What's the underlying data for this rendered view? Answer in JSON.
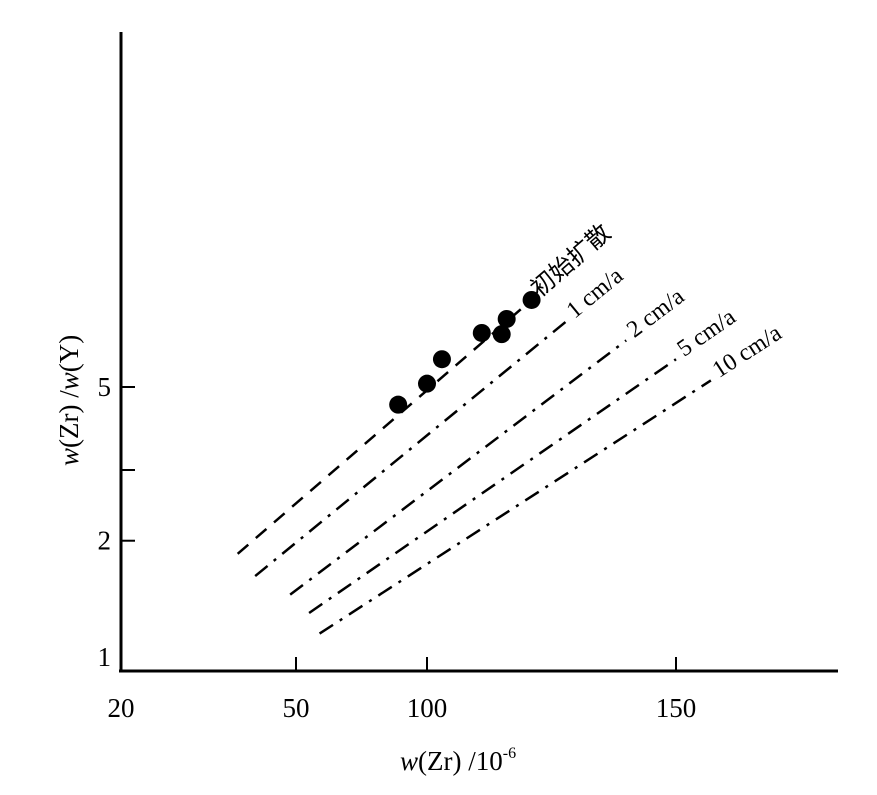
{
  "chart_data": {
    "type": "scatter",
    "title": "",
    "xlabel": {
      "var": "w",
      "rest": "(Zr) /10",
      "sup": "-6"
    },
    "ylabel": {
      "v1": "w",
      "mid": "(Zr) /",
      "v2": "w",
      "end": "(Y)"
    },
    "x_ticks": [
      20,
      50,
      100,
      150
    ],
    "y_ticks": [
      1,
      2,
      5
    ],
    "y_scale": "log",
    "points": [
      {
        "x": 89,
        "y": 4.5
      },
      {
        "x": 100,
        "y": 5.1
      },
      {
        "x": 103,
        "y": 5.9
      },
      {
        "x": 111,
        "y": 6.9
      },
      {
        "x": 115,
        "y": 6.85
      },
      {
        "x": 116,
        "y": 7.5
      },
      {
        "x": 121,
        "y": 8.4
      }
    ],
    "series": [
      {
        "name": "初始扩散",
        "style": "dashed",
        "x": [
          40,
          121
        ],
        "y": [
          1.85,
          8.4
        ]
      },
      {
        "name": "1 cm/a",
        "style": "dash-dot",
        "x": [
          43,
          128
        ],
        "y": [
          1.62,
          7.4
        ]
      },
      {
        "name": "2 cm/a",
        "style": "dash-dot",
        "x": [
          49,
          140
        ],
        "y": [
          1.45,
          6.6
        ]
      },
      {
        "name": "5 cm/a",
        "style": "dash-dot",
        "x": [
          55,
          150
        ],
        "y": [
          1.3,
          5.9
        ]
      },
      {
        "name": "10 cm/a",
        "style": "dash-dot",
        "x": [
          59,
          157
        ],
        "y": [
          1.15,
          5.2
        ]
      }
    ]
  }
}
